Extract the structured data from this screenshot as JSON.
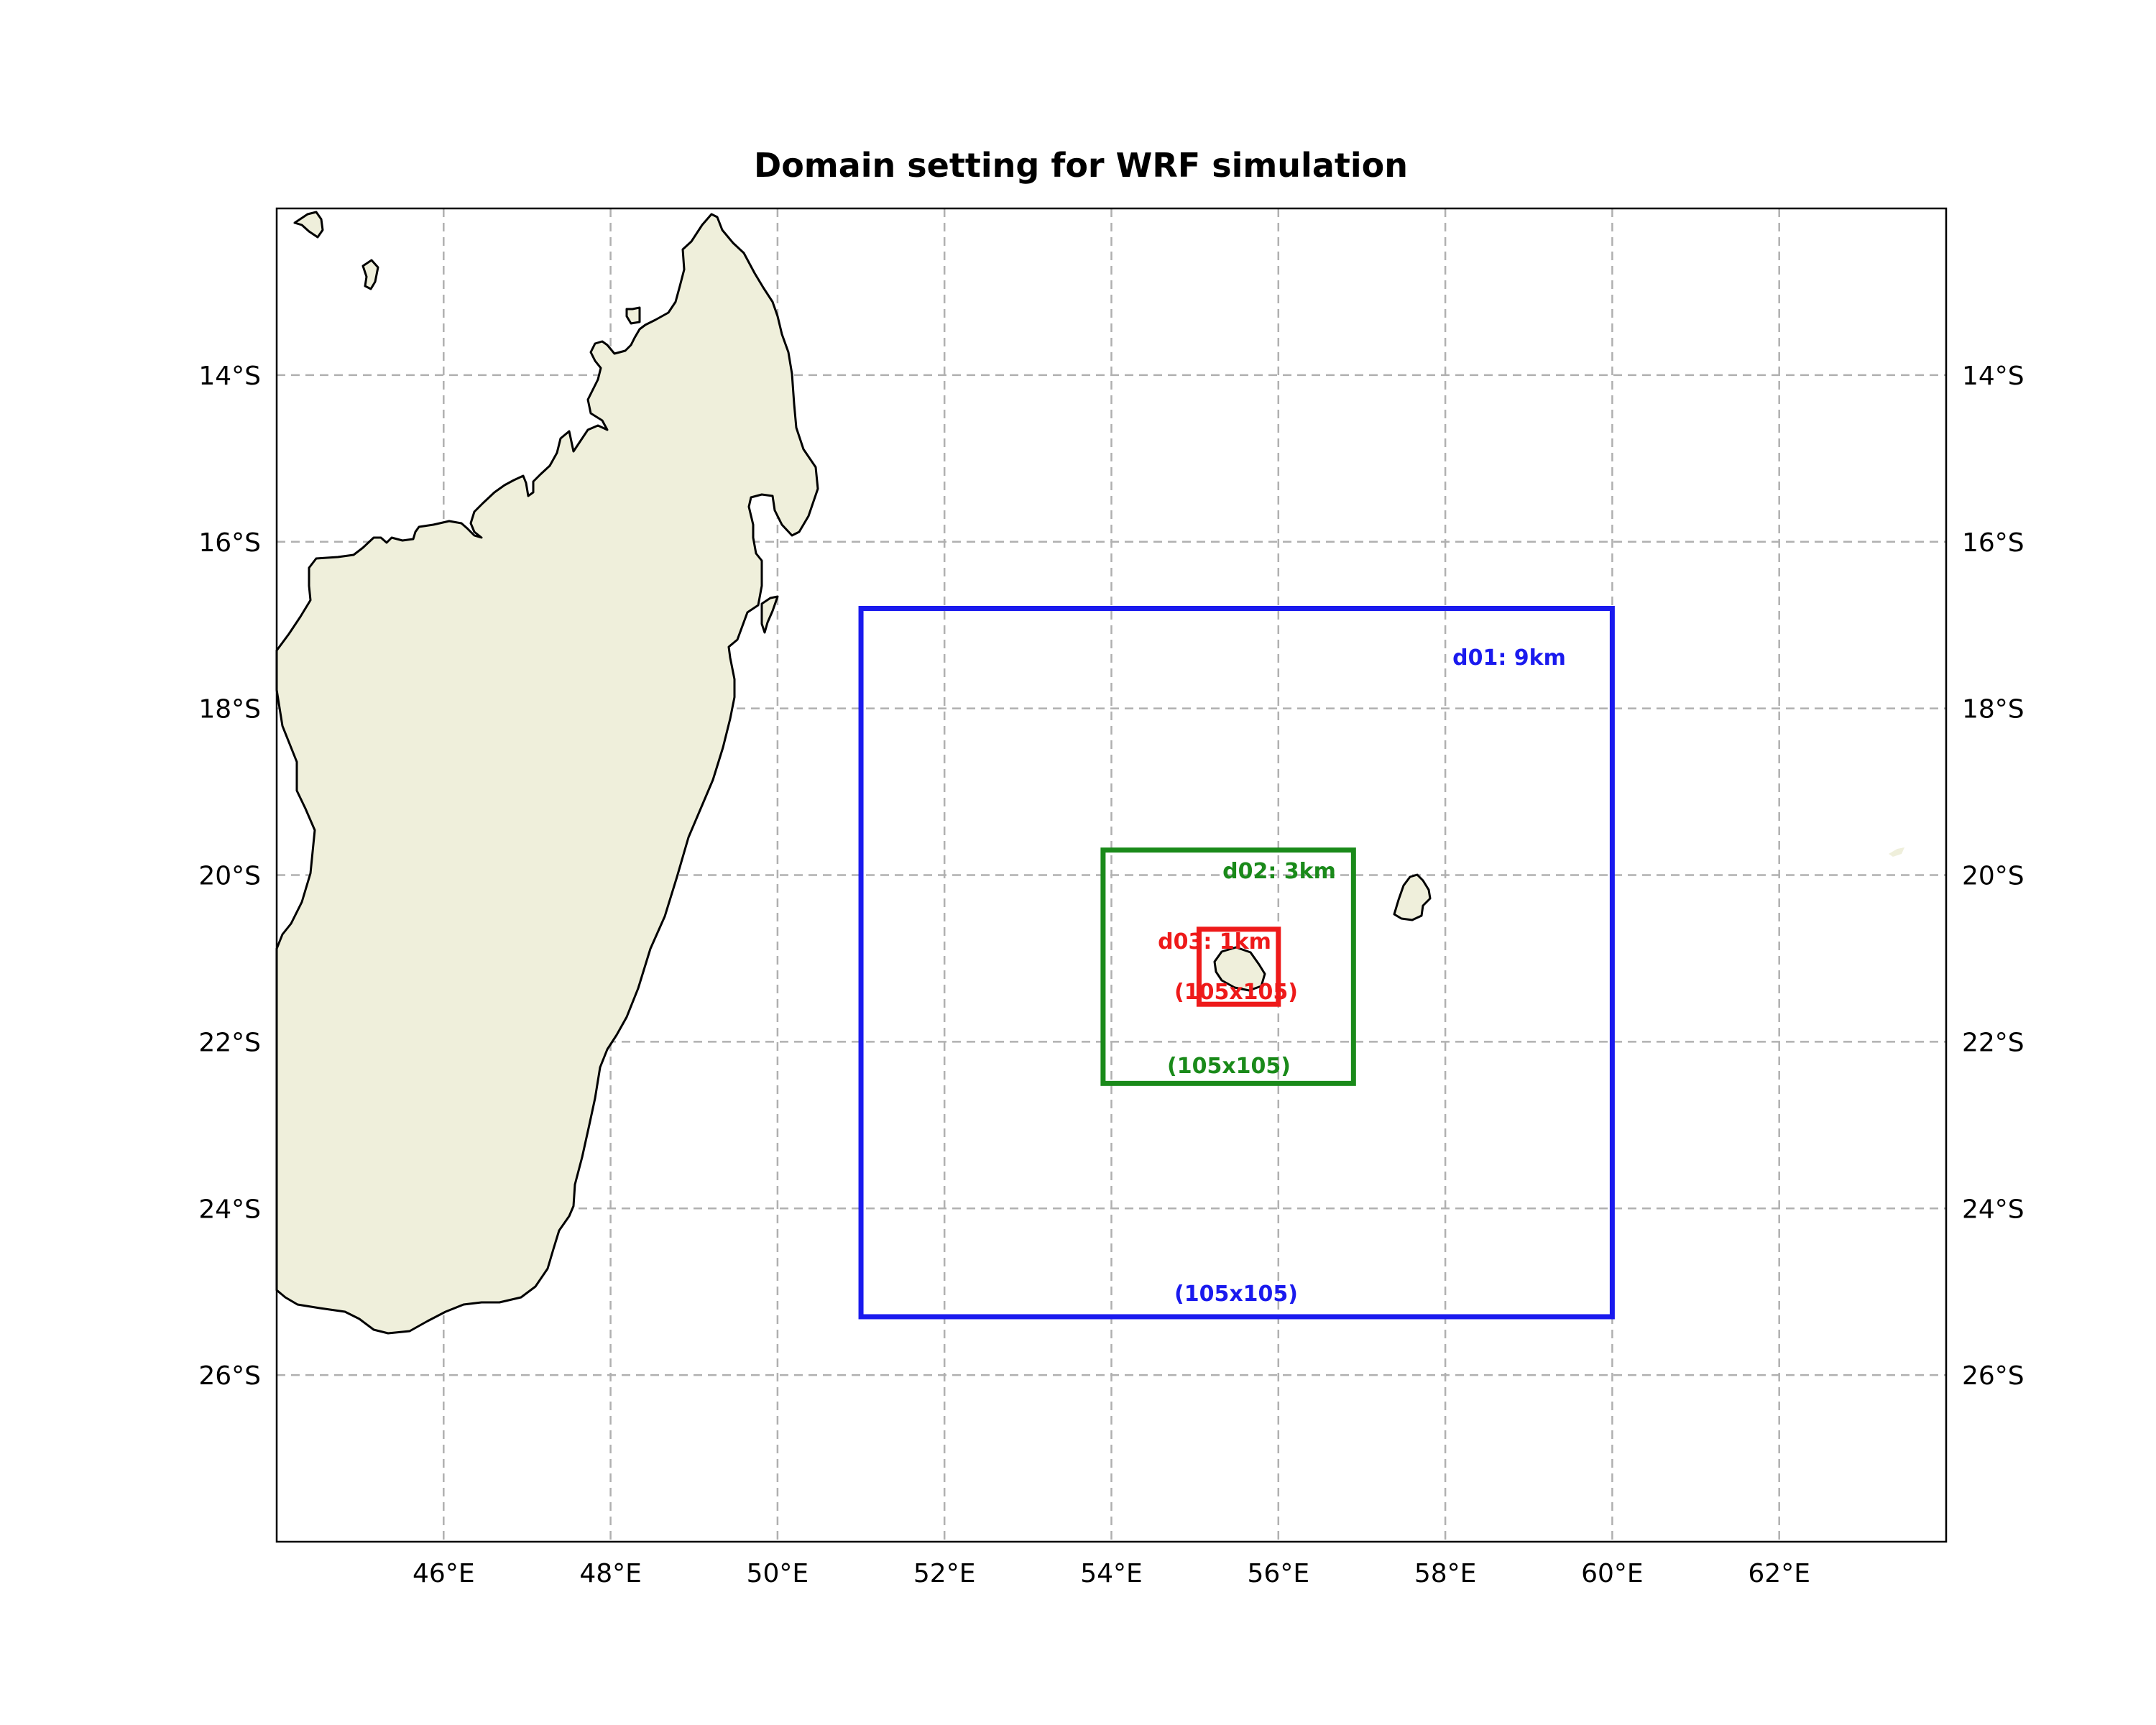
{
  "map": {
    "title": "Domain setting for WRF simulation",
    "extent": {
      "lon": [
        44.0,
        64.0
      ],
      "lat": [
        -12.0,
        -28.0
      ]
    },
    "lon_ticks": [
      {
        "value": 46,
        "label": "46°E"
      },
      {
        "value": 48,
        "label": "48°E"
      },
      {
        "value": 50,
        "label": "50°E"
      },
      {
        "value": 52,
        "label": "52°E"
      },
      {
        "value": 54,
        "label": "54°E"
      },
      {
        "value": 56,
        "label": "56°E"
      },
      {
        "value": 58,
        "label": "58°E"
      },
      {
        "value": 60,
        "label": "60°E"
      },
      {
        "value": 62,
        "label": "62°E"
      }
    ],
    "lat_ticks": [
      {
        "value": -14,
        "label": "14°S"
      },
      {
        "value": -16,
        "label": "16°S"
      },
      {
        "value": -18,
        "label": "18°S"
      },
      {
        "value": -20,
        "label": "20°S"
      },
      {
        "value": -22,
        "label": "22°S"
      },
      {
        "value": -24,
        "label": "24°S"
      },
      {
        "value": -26,
        "label": "26°S"
      }
    ],
    "gridlines": true,
    "colors": {
      "land": "#efefdb",
      "coastline": "#000000",
      "grid": "#b0b0b0",
      "d01": "#1a1aee",
      "d02": "#1a8a1a",
      "d03": "#ee1a1a"
    },
    "domains": [
      {
        "id": "d01",
        "label": "d01: 9km",
        "size_label": "(105x105)",
        "lon_min": 51.0,
        "lon_max": 60.0,
        "lat_min": -25.3,
        "lat_max": -16.8
      },
      {
        "id": "d02",
        "label": "d02: 3km",
        "size_label": "(105x105)",
        "lon_min": 53.9,
        "lon_max": 56.9,
        "lat_min": -22.5,
        "lat_max": -19.7
      },
      {
        "id": "d03",
        "label": "d03: 1km",
        "size_label": "(105x105)",
        "lon_min": 55.05,
        "lon_max": 56.0,
        "lat_min": -21.55,
        "lat_max": -20.65
      }
    ]
  }
}
